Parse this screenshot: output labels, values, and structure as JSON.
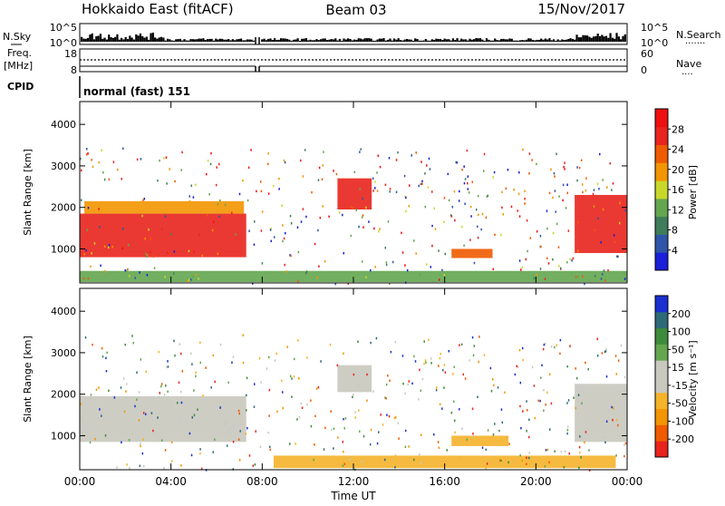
{
  "header": {
    "title_left": "Hokkaido East (fitACF)",
    "title_center": "Beam 03",
    "title_right": "15/Nov/2017"
  },
  "nsky": {
    "label": "N.Sky",
    "ticks_left": [
      "10^5",
      "10^0"
    ],
    "ticks_right": [
      "10^5",
      "10^0"
    ],
    "right_label": "N.Search",
    "right_marker": "......."
  },
  "freq": {
    "label_1": "Freq.",
    "label_2": "[MHz]",
    "ticks_left": [
      "18",
      "8"
    ],
    "ticks_right": [
      "60",
      "0"
    ],
    "right_label": "Nave",
    "right_marker": "...."
  },
  "cpid": {
    "label": "CPID",
    "text": "normal (fast) 151"
  },
  "colors": {
    "power_scale": [
      "#1a20d8",
      "#2f55a8",
      "#3f7d5a",
      "#63a64f",
      "#c8d82a",
      "#f29500",
      "#f05a00",
      "#e8241c",
      "#ee1010"
    ],
    "velocity_scale": [
      "#e8241c",
      "#f05a00",
      "#f29500",
      "#f4b32a",
      "#c8c8be",
      "#c8c8be",
      "#63a64f",
      "#3e8b3b",
      "#2d6a78",
      "#1a30d0"
    ]
  },
  "chart_data": [
    {
      "type": "heatmap",
      "name": "power-panel",
      "xlabel": "",
      "ylabel": "Slant Range [km]",
      "x_ticks": [
        "00:00",
        "04:00",
        "08:00",
        "12:00",
        "16:00",
        "20:00",
        "00:00"
      ],
      "y_ticks": [
        "1000",
        "2000",
        "3000",
        "4000"
      ],
      "xlim": [
        0,
        24
      ],
      "ylim": [
        180,
        4550
      ],
      "colorbar": {
        "label": "Power [dB]",
        "ticks": [
          "4",
          "8",
          "12",
          "16",
          "20",
          "24",
          "28"
        ],
        "range": [
          0,
          32
        ]
      },
      "regions": [
        {
          "x0": 0.0,
          "x1": 7.3,
          "y0": 800,
          "y1": 1850,
          "value": 28
        },
        {
          "x0": 0.2,
          "x1": 7.2,
          "y0": 1850,
          "y1": 2150,
          "value": 18
        },
        {
          "x0": 11.3,
          "x1": 12.8,
          "y0": 1950,
          "y1": 2700,
          "value": 26
        },
        {
          "x0": 21.7,
          "x1": 24.0,
          "y0": 900,
          "y1": 2300,
          "value": 28
        },
        {
          "x0": 16.3,
          "x1": 18.1,
          "y0": 780,
          "y1": 1000,
          "value": 22
        },
        {
          "x0": 0.0,
          "x1": 24.0,
          "y0": 200,
          "y1": 470,
          "value": 14
        }
      ]
    },
    {
      "type": "heatmap",
      "name": "velocity-panel",
      "xlabel": "Time UT",
      "ylabel": "Slant Range [km]",
      "x_ticks": [
        "00:00",
        "04:00",
        "08:00",
        "12:00",
        "16:00",
        "20:00",
        "00:00"
      ],
      "y_ticks": [
        "1000",
        "2000",
        "3000",
        "4000"
      ],
      "xlim": [
        0,
        24
      ],
      "ylim": [
        180,
        4550
      ],
      "colorbar": {
        "label": "Velocity [m s⁻¹]",
        "ticks": [
          "200",
          "100",
          "50",
          "15",
          "-15",
          "-50",
          "-100",
          "-200"
        ],
        "range": [
          -250,
          250
        ]
      },
      "regions": [
        {
          "x0": 0.0,
          "x1": 7.3,
          "y0": 850,
          "y1": 1950,
          "value": 0
        },
        {
          "x0": 11.3,
          "x1": 12.8,
          "y0": 2050,
          "y1": 2700,
          "value": 0
        },
        {
          "x0": 21.7,
          "x1": 24.0,
          "y0": 850,
          "y1": 2250,
          "value": 0
        },
        {
          "x0": 16.3,
          "x1": 18.8,
          "y0": 750,
          "y1": 1000,
          "value": -60
        },
        {
          "x0": 8.5,
          "x1": 23.5,
          "y0": 220,
          "y1": 520,
          "value": -60
        }
      ]
    }
  ]
}
